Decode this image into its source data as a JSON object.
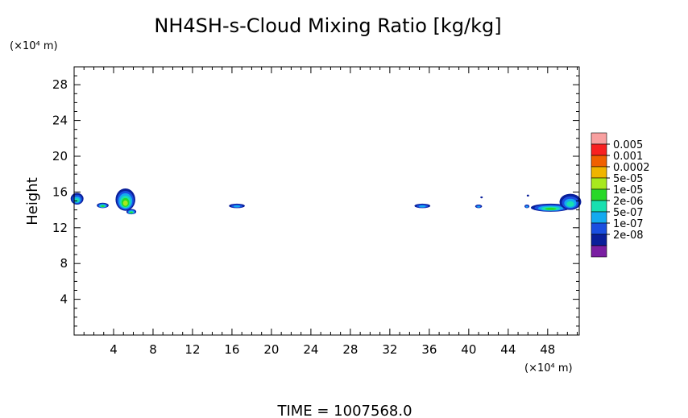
{
  "chart_data": {
    "type": "heatmap",
    "title": "NH4SH-s-Cloud Mixing Ratio [kg/kg]",
    "ylabel": "Height",
    "y_scale_label": "(×10⁴ m)",
    "x_scale_label": "(×10⁴ m)",
    "footer": "TIME = 1007568.0",
    "xlim": [
      0,
      51.2
    ],
    "ylim": [
      0,
      30
    ],
    "x_ticks": [
      4,
      8,
      12,
      16,
      20,
      24,
      28,
      32,
      36,
      40,
      44,
      48
    ],
    "y_ticks": [
      4,
      8,
      12,
      16,
      20,
      24,
      28
    ],
    "colorbar": {
      "levels": [
        "2e-08",
        "1e-07",
        "5e-07",
        "2e-06",
        "1e-05",
        "5e-05",
        "0.0002",
        "0.001",
        "0.005"
      ],
      "colors": [
        "#7a1fa2",
        "#0a1f9a",
        "#1a4fe0",
        "#14aaf0",
        "#18e0b0",
        "#28d828",
        "#a8e81e",
        "#f0b400",
        "#f06000",
        "#f82020",
        "#f8a0a0"
      ]
    },
    "cloud_cells": [
      {
        "x_center": 0.3,
        "x_width": 1.3,
        "y_bottom": 14.6,
        "y_top": 15.9,
        "max_level": 4
      },
      {
        "x_center": 2.9,
        "x_width": 1.2,
        "y_bottom": 14.2,
        "y_top": 14.8,
        "max_level": 5
      },
      {
        "x_center": 5.2,
        "x_width": 2.0,
        "y_bottom": 13.9,
        "y_top": 16.4,
        "max_level": 6
      },
      {
        "x_center": 5.8,
        "x_width": 1.0,
        "y_bottom": 13.5,
        "y_top": 14.1,
        "max_level": 5
      },
      {
        "x_center": 16.5,
        "x_width": 1.6,
        "y_bottom": 14.2,
        "y_top": 14.7,
        "max_level": 3
      },
      {
        "x_center": 35.3,
        "x_width": 1.6,
        "y_bottom": 14.2,
        "y_top": 14.7,
        "max_level": 3
      },
      {
        "x_center": 41.0,
        "x_width": 0.7,
        "y_bottom": 14.2,
        "y_top": 14.6,
        "max_level": 3
      },
      {
        "x_center": 41.3,
        "x_width": 0.2,
        "y_bottom": 15.3,
        "y_top": 15.5,
        "max_level": 1
      },
      {
        "x_center": 46.0,
        "x_width": 0.2,
        "y_bottom": 15.5,
        "y_top": 15.7,
        "max_level": 1
      },
      {
        "x_center": 45.9,
        "x_width": 0.5,
        "y_bottom": 14.2,
        "y_top": 14.6,
        "max_level": 3
      },
      {
        "x_center": 48.3,
        "x_width": 4.0,
        "y_bottom": 13.8,
        "y_top": 14.7,
        "max_level": 5
      },
      {
        "x_center": 50.3,
        "x_width": 2.2,
        "y_bottom": 14.0,
        "y_top": 15.8,
        "max_level": 4
      }
    ]
  }
}
